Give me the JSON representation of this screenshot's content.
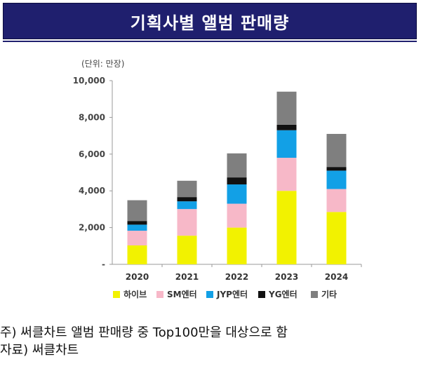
{
  "header": {
    "title": "기획사별 앨범 판매량"
  },
  "unit_label": "(단위: 만장)",
  "notes": [
    "주) 써클차트 앨범 판매량 중 Top100만을 대상으로 함",
    "자료) 써클차트"
  ],
  "chart_data": {
    "type": "bar",
    "stacked": true,
    "categories": [
      "2020",
      "2021",
      "2022",
      "2023",
      "2024"
    ],
    "series": [
      {
        "name": "하이브",
        "color": "#f2f200",
        "values": [
          1030,
          1560,
          2000,
          4000,
          2850
        ]
      },
      {
        "name": "SM엔터",
        "color": "#f7b8c8",
        "values": [
          800,
          1450,
          1300,
          1800,
          1250
        ]
      },
      {
        "name": "JYP엔터",
        "color": "#12a0e6",
        "values": [
          330,
          420,
          1050,
          1500,
          1000
        ]
      },
      {
        "name": "YG엔터",
        "color": "#111111",
        "values": [
          200,
          230,
          380,
          300,
          200
        ]
      },
      {
        "name": "기타",
        "color": "#7f7f7f",
        "values": [
          1130,
          890,
          1310,
          1800,
          1800
        ]
      }
    ],
    "yticks": [
      "-",
      "2,000",
      "4,000",
      "6,000",
      "8,000",
      "10,000"
    ],
    "ylim": [
      0,
      10000
    ],
    "grid": false,
    "legend": "bottom"
  }
}
